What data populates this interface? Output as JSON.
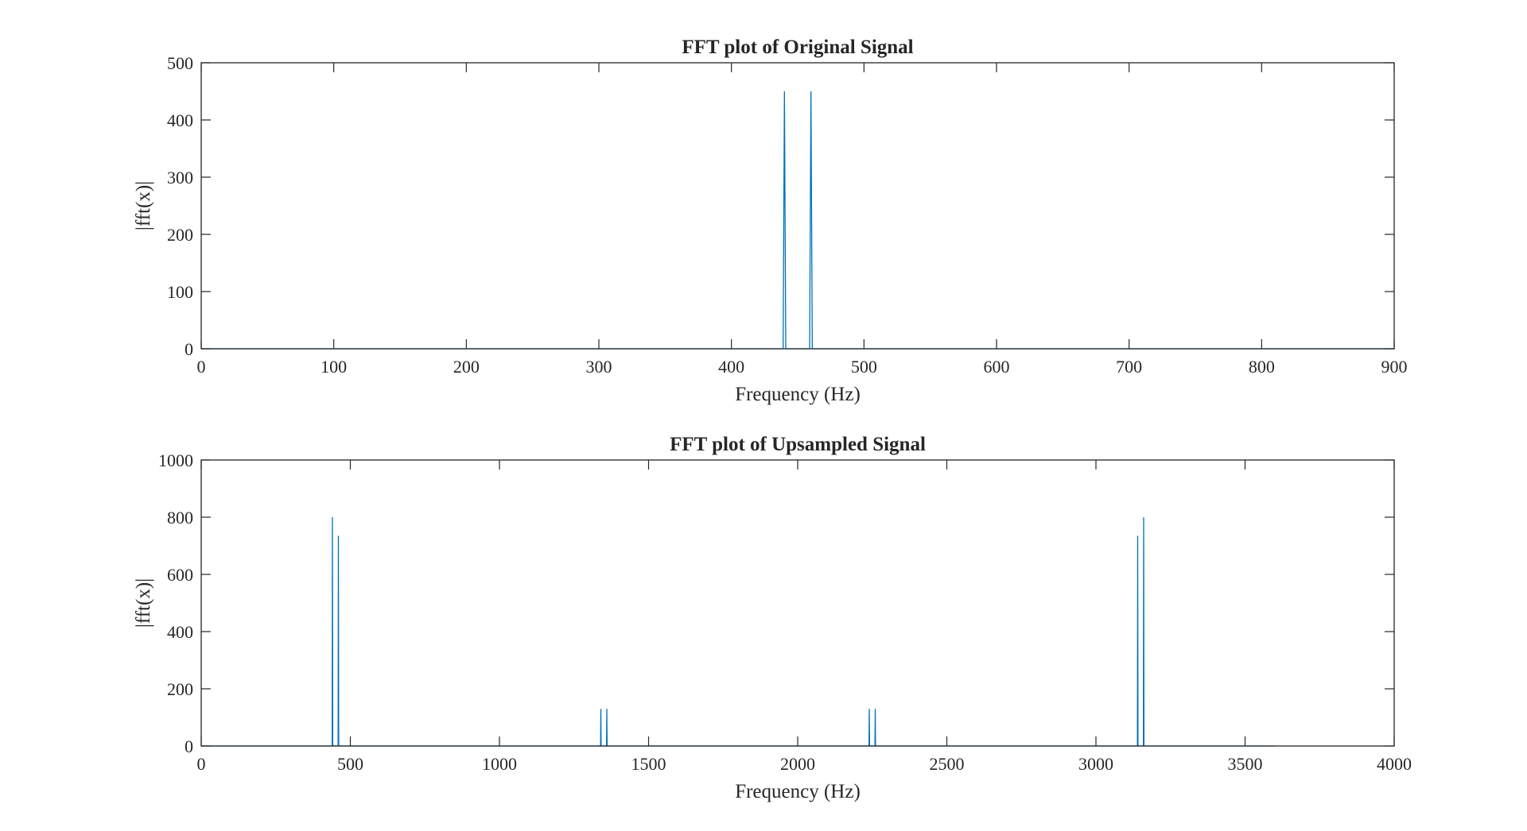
{
  "chart_data": [
    {
      "type": "line",
      "title": "FFT plot of Original Signal",
      "xlabel": "Frequency (Hz)",
      "ylabel": "|fft(x)|",
      "xlim": [
        0,
        900
      ],
      "ylim": [
        0,
        500
      ],
      "xticks": [
        0,
        100,
        200,
        300,
        400,
        500,
        600,
        700,
        800,
        900
      ],
      "yticks": [
        0,
        100,
        200,
        300,
        400,
        500
      ],
      "xtick_labels": [
        "0",
        "100",
        "200",
        "300",
        "400",
        "500",
        "600",
        "700",
        "800",
        "900"
      ],
      "ytick_labels": [
        "0",
        "100",
        "200",
        "300",
        "400",
        "500"
      ],
      "grid": false,
      "series": [
        {
          "color": "#0072BD",
          "points": [
            [
              0,
              0
            ],
            [
              439,
              0
            ],
            [
              440,
              450
            ],
            [
              441,
              0
            ],
            [
              459,
              0
            ],
            [
              460,
              450
            ],
            [
              461,
              0
            ],
            [
              900,
              0
            ]
          ]
        }
      ]
    },
    {
      "type": "line",
      "title": "FFT plot of Upsampled Signal",
      "xlabel": "Frequency (Hz)",
      "ylabel": "|fft(x)|",
      "xlim": [
        0,
        4000
      ],
      "ylim": [
        0,
        1000
      ],
      "xticks": [
        0,
        500,
        1000,
        1500,
        2000,
        2500,
        3000,
        3500,
        4000
      ],
      "yticks": [
        0,
        200,
        400,
        600,
        800,
        1000
      ],
      "xtick_labels": [
        "0",
        "500",
        "1000",
        "1500",
        "2000",
        "2500",
        "3000",
        "3500",
        "4000"
      ],
      "ytick_labels": [
        "0",
        "200",
        "400",
        "600",
        "800",
        "1000"
      ],
      "grid": false,
      "series": [
        {
          "color": "#0072BD",
          "points": [
            [
              0,
              0
            ],
            [
              439,
              0
            ],
            [
              440,
              800
            ],
            [
              441,
              0
            ],
            [
              459,
              0
            ],
            [
              460,
              735
            ],
            [
              461,
              0
            ],
            [
              1339,
              0
            ],
            [
              1340,
              130
            ],
            [
              1341,
              0
            ],
            [
              1359,
              0
            ],
            [
              1360,
              130
            ],
            [
              1361,
              0
            ],
            [
              2239,
              0
            ],
            [
              2240,
              130
            ],
            [
              2241,
              0
            ],
            [
              2259,
              0
            ],
            [
              2260,
              130
            ],
            [
              2261,
              0
            ],
            [
              3139,
              0
            ],
            [
              3140,
              735
            ],
            [
              3141,
              0
            ],
            [
              3159,
              0
            ],
            [
              3160,
              800
            ],
            [
              3161,
              0
            ],
            [
              3600,
              0
            ]
          ]
        }
      ]
    }
  ]
}
